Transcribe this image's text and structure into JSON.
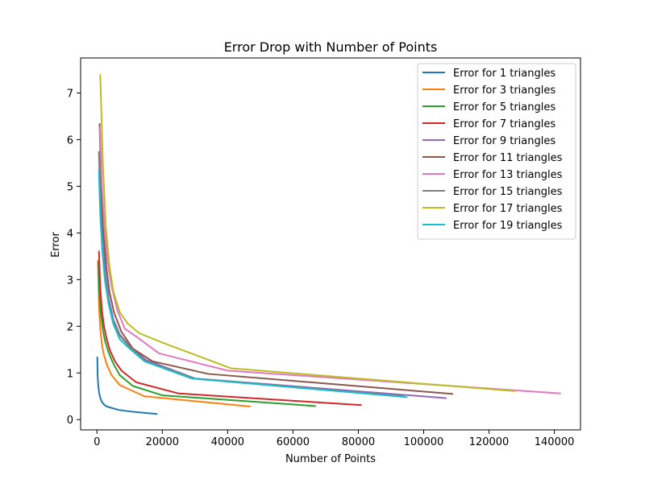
{
  "chart_data": {
    "type": "line",
    "title": "Error Drop with Number of Points",
    "xlabel": "Number of Points",
    "ylabel": "Error",
    "xlim": [
      -5000,
      148000
    ],
    "ylim": [
      -0.22,
      7.75
    ],
    "xticks": [
      0,
      20000,
      40000,
      60000,
      80000,
      100000,
      120000,
      140000
    ],
    "yticks": [
      0,
      1,
      2,
      3,
      4,
      5,
      6,
      7
    ],
    "grid": false,
    "legend_position": "top-right",
    "series": [
      {
        "name": "Error for 1 triangles",
        "color": "#1f77b4",
        "x": [
          100,
          200,
          400,
          700,
          1000,
          1500,
          2200,
          3000,
          4500,
          6500,
          9500,
          13500,
          18500
        ],
        "y": [
          1.35,
          0.95,
          0.72,
          0.56,
          0.47,
          0.38,
          0.32,
          0.28,
          0.25,
          0.21,
          0.18,
          0.15,
          0.12
        ]
      },
      {
        "name": "Error for 3 triangles",
        "color": "#ff7f0e",
        "x": [
          300,
          600,
          1000,
          1500,
          2000,
          3000,
          4500,
          7000,
          14500,
          47000
        ],
        "y": [
          3.42,
          2.45,
          1.95,
          1.62,
          1.42,
          1.18,
          0.95,
          0.74,
          0.5,
          0.28
        ]
      },
      {
        "name": "Error for 5 triangles",
        "color": "#2ca02c",
        "x": [
          400,
          700,
          1200,
          1800,
          2500,
          3500,
          5000,
          7000,
          11000,
          20000,
          67000
        ],
        "y": [
          3.38,
          2.75,
          2.25,
          1.92,
          1.68,
          1.45,
          1.2,
          0.95,
          0.72,
          0.52,
          0.29
        ]
      },
      {
        "name": "Error for 7 triangles",
        "color": "#d62728",
        "x": [
          600,
          1000,
          1500,
          2200,
          3000,
          4000,
          5500,
          7500,
          12000,
          25000,
          81000
        ],
        "y": [
          3.62,
          2.85,
          2.35,
          1.98,
          1.72,
          1.48,
          1.25,
          1.05,
          0.8,
          0.56,
          0.31
        ]
      },
      {
        "name": "Error for 9 triangles",
        "color": "#9467bd",
        "x": [
          700,
          1200,
          1800,
          2600,
          3600,
          5000,
          7000,
          10000,
          15000,
          30000,
          107000
        ],
        "y": [
          5.65,
          4.55,
          3.75,
          3.1,
          2.6,
          2.15,
          1.82,
          1.58,
          1.28,
          0.88,
          0.46
        ]
      },
      {
        "name": "Error for 11 triangles",
        "color": "#8c564b",
        "x": [
          800,
          1300,
          2000,
          2800,
          3800,
          5200,
          7500,
          11000,
          17000,
          34000,
          109000
        ],
        "y": [
          6.35,
          4.95,
          4.0,
          3.3,
          2.75,
          2.3,
          1.88,
          1.52,
          1.25,
          0.98,
          0.55
        ]
      },
      {
        "name": "Error for 13 triangles",
        "color": "#e377c2",
        "x": [
          900,
          1500,
          2300,
          3200,
          4500,
          6200,
          8500,
          12000,
          19000,
          40000,
          142000
        ],
        "y": [
          6.28,
          5.05,
          4.1,
          3.4,
          2.85,
          2.35,
          1.95,
          1.78,
          1.42,
          1.05,
          0.56
        ]
      },
      {
        "name": "Error for 15 triangles",
        "color": "#7f7f7f",
        "x": [
          600,
          1000,
          1600,
          2400,
          3500,
          5000,
          7000,
          10000,
          15000,
          30000,
          94000
        ],
        "y": [
          5.75,
          4.65,
          3.8,
          3.1,
          2.55,
          2.1,
          1.8,
          1.56,
          1.25,
          0.88,
          0.5
        ]
      },
      {
        "name": "Error for 17 triangles",
        "color": "#bcbd22",
        "x": [
          1000,
          1800,
          2700,
          3800,
          5000,
          7000,
          9500,
          13000,
          20000,
          41000,
          128000
        ],
        "y": [
          7.4,
          5.5,
          4.15,
          3.3,
          2.75,
          2.3,
          2.05,
          1.85,
          1.65,
          1.1,
          0.61
        ]
      },
      {
        "name": "Error for 19 triangles",
        "color": "#17becf",
        "x": [
          600,
          1000,
          1600,
          2400,
          3500,
          5000,
          7000,
          10000,
          14500,
          29000,
          95000
        ],
        "y": [
          5.35,
          4.4,
          3.65,
          3.0,
          2.5,
          2.05,
          1.72,
          1.52,
          1.25,
          0.88,
          0.48
        ]
      }
    ]
  }
}
